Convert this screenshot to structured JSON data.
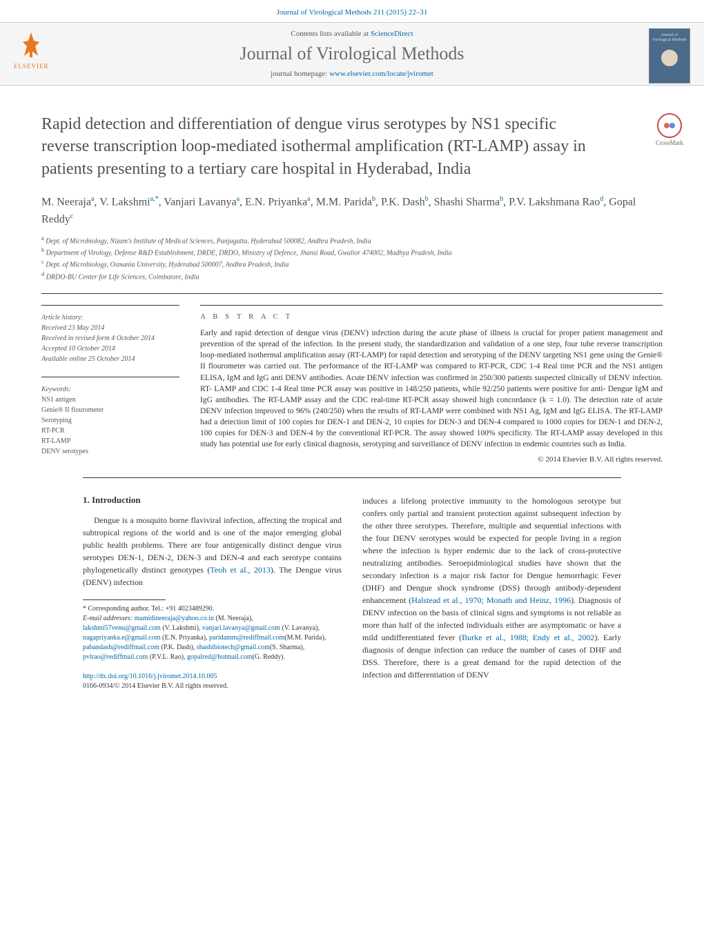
{
  "header": {
    "citation": "Journal of Virological Methods 211 (2015) 22–31",
    "contents_prefix": "Contents lists available at ",
    "contents_link": "ScienceDirect",
    "journal_name": "Journal of Virological Methods",
    "homepage_prefix": "journal homepage: ",
    "homepage_url": "www.elsevier.com/locate/jviromet",
    "publisher": "ELSEVIER",
    "cover_title": "Journal of Virological Methods"
  },
  "colors": {
    "elsevier_orange": "#e67822",
    "link_blue": "#0066a4",
    "title_grey": "#505050",
    "cover_bg": "#4a6b8a",
    "crossmark_red": "#cc4444"
  },
  "crossmark": {
    "label": "CrossMark"
  },
  "article": {
    "title": "Rapid detection and differentiation of dengue virus serotypes by NS1 specific reverse transcription loop-mediated isothermal amplification (RT-LAMP) assay in patients presenting to a tertiary care hospital in Hyderabad, India",
    "authors_html": "M. Neeraja<sup>a</sup>, V. Lakshmi<sup>a,*</sup>, Vanjari Lavanya<sup>a</sup>, E.N. Priyanka<sup>a</sup>, M.M. Parida<sup>b</sup>, P.K. Dash<sup>b</sup>, Shashi Sharma<sup>b</sup>, P.V. Lakshmana Rao<sup>d</sup>, Gopal Reddy<sup>c</sup>",
    "affiliations": [
      {
        "sup": "a",
        "text": "Dept. of Microbiology, Nizam's Institute of Medical Sciences, Panjagutta, Hyderabad 500082, Andhra Pradesh, India"
      },
      {
        "sup": "b",
        "text": "Department of Virology, Defense R&D Establishment, DRDE, DRDO, Ministry of Defence, Jhansi Road, Gwalior 474002, Madhya Pradesh, India"
      },
      {
        "sup": "c",
        "text": "Dept. of Microbiology, Osmania University, Hyderabad 500007, Andhra Pradesh, India"
      },
      {
        "sup": "d",
        "text": "DRDO-BU Center for Life Sciences, Coimbatore, India"
      }
    ]
  },
  "history": {
    "label": "Article history:",
    "received": "Received 23 May 2014",
    "revised": "Received in revised form 4 October 2014",
    "accepted": "Accepted 10 October 2014",
    "online": "Available online 25 October 2014"
  },
  "keywords": {
    "label": "Keywords:",
    "items": [
      "NS1 antigen",
      "Genie® II flourometer",
      "Serotyping",
      "RT-PCR",
      "RT-LAMP",
      "DENV serotypes"
    ]
  },
  "abstract": {
    "heading": "A B S T R A C T",
    "text": "Early and rapid detection of dengue virus (DENV) infection during the acute phase of illness is crucial for proper patient management and prevention of the spread of the infection. In the present study, the standardization and validation of a one step, four tube reverse transcription loop-mediated isothermal amplification assay (RT-LAMP) for rapid detection and serotyping of the DENV targeting NS1 gene using the Genie® II flourometer was carried out. The performance of the RT-LAMP was compared to RT-PCR, CDC 1-4 Real time PCR and the NS1 antigen ELISA, IgM and IgG anti DENV antibodies. Acute DENV infection was confirmed in 250/300 patients suspected clinically of DENV infection. RT- LAMP and CDC 1-4 Real time PCR assay was positive in 148/250 patients, while 92/250 patients were positive for anti- Dengue IgM and IgG antibodies. The RT-LAMP assay and the CDC real-time RT-PCR assay showed high concordance (k = 1.0). The detection rate of acute DENV infection improved to 96% (240/250) when the results of RT-LAMP were combined with NS1 Ag, IgM and IgG ELISA. The RT-LAMP had a detection limit of 100 copies for DEN-1 and DEN-2, 10 copies for DEN-3 and DEN-4 compared to 1000 copies for DEN-1 and DEN-2, 100 copies for DEN-3 and DEN-4 by the conventional RT-PCR. The assay showed 100% specificity. The RT-LAMP assay developed in this study has potential use for early clinical diagnosis, serotyping and surveillance of DENV infection in endemic countries such as India.",
    "copyright": "© 2014 Elsevier B.V. All rights reserved."
  },
  "introduction": {
    "heading": "1. Introduction",
    "para1_pre": "Dengue is a mosquito borne flaviviral infection, affecting the tropical and subtropical regions of the world and is one of the major emerging global public health problems. There are four antigenically distinct dengue virus serotypes DEN-1, DEN-2, DEN-3 and DEN-4 and each serotype contains phylogenetically distinct genotypes (",
    "para1_ref": "Teoh et al., 2013",
    "para1_post": "). The Dengue virus (DENV) infection",
    "para2_pre": "induces a lifelong protective immunity to the homologous serotype but confers only partial and transient protection against subsequent infection by the other three serotypes. Therefore, multiple and sequential infections with the four DENV serotypes would be expected for people living in a region where the infection is hyper endemic due to the lack of cross-protective neutralizing antibodies. Seroepidmiological studies have shown that the secondary infection is a major risk factor for Dengue hemorrhagic Fever (DHF) and Dengue shock syndrome (DSS) through antibody-dependent enhancement (",
    "para2_ref1": "Halstead et al., 1970; Monath and Heinz, 1996",
    "para2_mid": "). Diagnosis of DENV infection on the basis of clinical signs and symptoms is not reliable as more than half of the infected individuals either are asymptomatic or have a mild undifferentiated fever (",
    "para2_ref2": "Burke et al., 1988; Endy et al., 2002",
    "para2_post": "). Early diagnosis of dengue infection can reduce the number of cases of DHF and DSS. Therefore, there is a great demand for the rapid detection of the infection and differentiation of DENV"
  },
  "footnotes": {
    "corresponding": "* Corresponding author. Tel.: +91 4023489290.",
    "email_label": "E-mail addresses: ",
    "emails": [
      {
        "addr": "mamidineeraja@yahoo.co.in",
        "who": " (M. Neeraja),"
      },
      {
        "addr": "lakshmi57venu@gmail.com",
        "who": " (V. Lakshmi), "
      },
      {
        "addr": "vanjari.lavanya@gmail.com",
        "who": " (V. Lavanya),"
      },
      {
        "addr": "nagapriyanka.e@gmail.com",
        "who": " (E.N. Priyanka), "
      },
      {
        "addr": "paridamm@rediffmail.com",
        "who": ""
      },
      {
        "addr": "",
        "who": "(M.M. Parida), "
      },
      {
        "addr": "pabandash@rediffmail.com",
        "who": " (P.K. Dash), "
      },
      {
        "addr": "shashibiotech@gmail.com",
        "who": ""
      },
      {
        "addr": "",
        "who": "(S. Sharma), "
      },
      {
        "addr": "pvlrao@rediffmail.com",
        "who": " (P.V.L. Rao), "
      },
      {
        "addr": "gopalred@hotmail.com",
        "who": ""
      },
      {
        "addr": "",
        "who": "(G. Reddy)."
      }
    ]
  },
  "doi": {
    "url": "http://dx.doi.org/10.1016/j.jviromet.2014.10.005",
    "issn_line": "0166-0934/© 2014 Elsevier B.V. All rights reserved."
  }
}
